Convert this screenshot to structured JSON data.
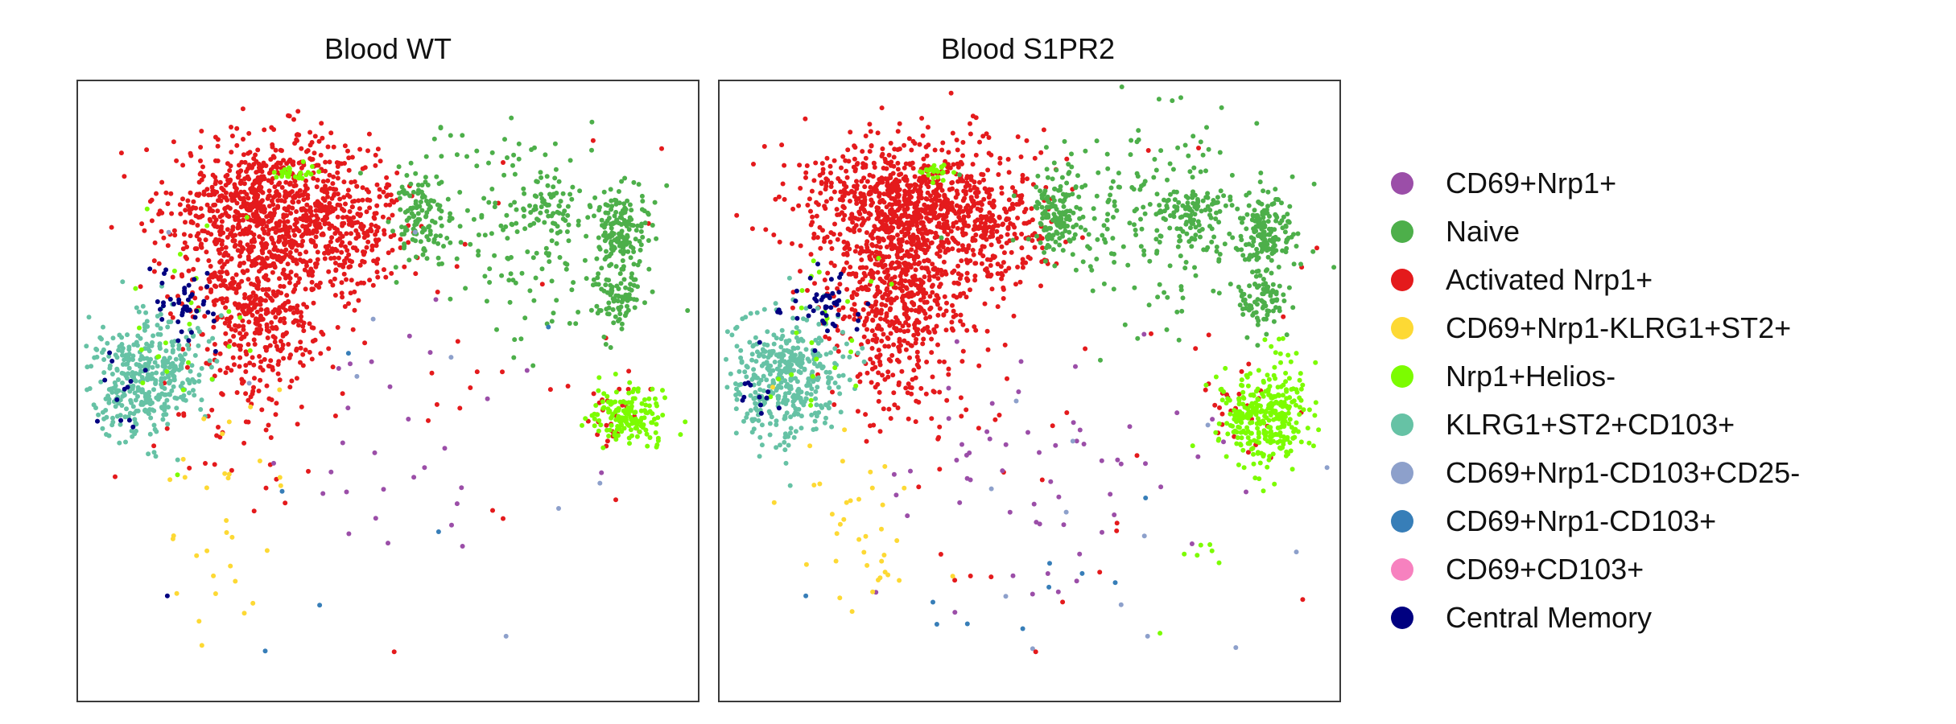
{
  "chart_data": [
    {
      "type": "scatter",
      "title": "Blood WT",
      "xlabel": "",
      "ylabel": "",
      "grid": false,
      "axes_ticks": false,
      "xlim": [
        0,
        100
      ],
      "ylim": [
        0,
        100
      ],
      "clusters": [
        {
          "series": "Activated Nrp1+",
          "cx": 31,
          "cy": 79,
          "sx": 8,
          "sy": 6,
          "n": 900
        },
        {
          "series": "Activated Nrp1+",
          "cx": 29,
          "cy": 63,
          "sx": 5,
          "sy": 6,
          "n": 350
        },
        {
          "series": "Activated Nrp1+",
          "cx": 45,
          "cy": 76,
          "sx": 5,
          "sy": 6,
          "n": 180
        },
        {
          "series": "Activated Nrp1+",
          "cx": 28,
          "cy": 48,
          "sx": 7,
          "sy": 10,
          "n": 70
        },
        {
          "series": "Activated Nrp1+",
          "cx": 65,
          "cy": 60,
          "sx": 20,
          "sy": 15,
          "n": 30
        },
        {
          "series": "Activated Nrp1+",
          "cx": 86,
          "cy": 46,
          "sx": 2,
          "sy": 3,
          "n": 25
        },
        {
          "series": "Naive",
          "cx": 55,
          "cy": 78,
          "sx": 2,
          "sy": 3,
          "n": 110
        },
        {
          "series": "Naive",
          "cx": 76,
          "cy": 79,
          "sx": 3,
          "sy": 2,
          "n": 60
        },
        {
          "series": "Naive",
          "cx": 87,
          "cy": 76,
          "sx": 2,
          "sy": 3,
          "n": 140
        },
        {
          "series": "Naive",
          "cx": 87,
          "cy": 65,
          "sx": 2,
          "sy": 2.5,
          "n": 80
        },
        {
          "series": "Naive",
          "cx": 75,
          "cy": 75,
          "sx": 10,
          "sy": 8,
          "n": 140
        },
        {
          "series": "Naive",
          "cx": 62,
          "cy": 82,
          "sx": 8,
          "sy": 6,
          "n": 40
        },
        {
          "series": "KLRG1+ST2+CD103+",
          "cx": 10,
          "cy": 52,
          "sx": 4,
          "sy": 5,
          "n": 330
        },
        {
          "series": "KLRG1+ST2+CD103+",
          "cx": 17,
          "cy": 53,
          "sx": 3,
          "sy": 4,
          "n": 60
        },
        {
          "series": "Nrp1+Helios-",
          "cx": 89,
          "cy": 46,
          "sx": 3,
          "sy": 2.5,
          "n": 160
        },
        {
          "series": "Nrp1+Helios-",
          "cx": 35,
          "cy": 85,
          "sx": 1.5,
          "sy": 0.8,
          "n": 25
        },
        {
          "series": "Nrp1+Helios-",
          "cx": 18,
          "cy": 60,
          "sx": 5,
          "sy": 8,
          "n": 25
        },
        {
          "series": "Central Memory",
          "cx": 18,
          "cy": 64,
          "sx": 3,
          "sy": 3,
          "n": 45
        },
        {
          "series": "Central Memory",
          "cx": 7,
          "cy": 50,
          "sx": 2,
          "sy": 4,
          "n": 12
        },
        {
          "series": "CD69+Nrp1+",
          "cx": 52,
          "cy": 42,
          "sx": 12,
          "sy": 12,
          "n": 28
        },
        {
          "series": "CD69+Nrp1-KLRG1+ST2+",
          "cx": 23,
          "cy": 30,
          "sx": 6,
          "sy": 10,
          "n": 32
        },
        {
          "series": "CD69+Nrp1-CD103+CD25-",
          "cx": 50,
          "cy": 60,
          "sx": 20,
          "sy": 20,
          "n": 8
        },
        {
          "series": "CD69+Nrp1-CD103+",
          "cx": 45,
          "cy": 35,
          "sx": 15,
          "sy": 15,
          "n": 5
        }
      ],
      "points": [
        {
          "series": "Central Memory",
          "x": 14.5,
          "y": 17
        },
        {
          "series": "Activated Nrp1+",
          "x": 51,
          "y": 8
        },
        {
          "series": "CD69+Nrp1-CD103+CD25-",
          "x": 69,
          "y": 10.5
        },
        {
          "series": "CD69+Nrp1-CD103+",
          "x": 39,
          "y": 15.5
        },
        {
          "series": "CD69+Nrp1+",
          "x": 50,
          "y": 25.5
        },
        {
          "series": "CD69+Nrp1+",
          "x": 62,
          "y": 25
        }
      ]
    },
    {
      "type": "scatter",
      "title": "Blood S1PR2",
      "xlabel": "",
      "ylabel": "",
      "grid": false,
      "axes_ticks": false,
      "xlim": [
        0,
        100
      ],
      "ylim": [
        0,
        100
      ],
      "clusters": [
        {
          "series": "Activated Nrp1+",
          "cx": 30,
          "cy": 79,
          "sx": 8,
          "sy": 6,
          "n": 950
        },
        {
          "series": "Activated Nrp1+",
          "cx": 29,
          "cy": 63,
          "sx": 5,
          "sy": 6,
          "n": 380
        },
        {
          "series": "Activated Nrp1+",
          "cx": 44,
          "cy": 76,
          "sx": 5,
          "sy": 6,
          "n": 200
        },
        {
          "series": "Activated Nrp1+",
          "cx": 30,
          "cy": 52,
          "sx": 6,
          "sy": 8,
          "n": 70
        },
        {
          "series": "Activated Nrp1+",
          "cx": 62,
          "cy": 55,
          "sx": 20,
          "sy": 18,
          "n": 35
        },
        {
          "series": "Activated Nrp1+",
          "cx": 84,
          "cy": 47,
          "sx": 3,
          "sy": 4,
          "n": 25
        },
        {
          "series": "Naive",
          "cx": 54,
          "cy": 78,
          "sx": 2,
          "sy": 3,
          "n": 120
        },
        {
          "series": "Naive",
          "cx": 76,
          "cy": 79,
          "sx": 3,
          "sy": 2,
          "n": 80
        },
        {
          "series": "Naive",
          "cx": 88,
          "cy": 76,
          "sx": 2,
          "sy": 3,
          "n": 150
        },
        {
          "series": "Naive",
          "cx": 87,
          "cy": 65,
          "sx": 2,
          "sy": 2.5,
          "n": 90
        },
        {
          "series": "Naive",
          "cx": 72,
          "cy": 78,
          "sx": 10,
          "sy": 8,
          "n": 180
        },
        {
          "series": "Naive",
          "cx": 62,
          "cy": 82,
          "sx": 8,
          "sy": 6,
          "n": 60
        },
        {
          "series": "KLRG1+ST2+CD103+",
          "cx": 10,
          "cy": 52,
          "sx": 4,
          "sy": 5,
          "n": 340
        },
        {
          "series": "KLRG1+ST2+CD103+",
          "cx": 17,
          "cy": 53,
          "sx": 3,
          "sy": 4,
          "n": 60
        },
        {
          "series": "Nrp1+Helios-",
          "cx": 88,
          "cy": 46,
          "sx": 3.5,
          "sy": 4,
          "n": 320
        },
        {
          "series": "Nrp1+Helios-",
          "cx": 35,
          "cy": 85,
          "sx": 1.5,
          "sy": 0.8,
          "n": 25
        },
        {
          "series": "Nrp1+Helios-",
          "cx": 18,
          "cy": 60,
          "sx": 5,
          "sy": 8,
          "n": 25
        },
        {
          "series": "Nrp1+Helios-",
          "cx": 78,
          "cy": 24,
          "sx": 2,
          "sy": 1,
          "n": 6
        },
        {
          "series": "Central Memory",
          "cx": 17,
          "cy": 64,
          "sx": 3,
          "sy": 3,
          "n": 45
        },
        {
          "series": "Central Memory",
          "cx": 7,
          "cy": 50,
          "sx": 2,
          "sy": 4,
          "n": 12
        },
        {
          "series": "CD69+Nrp1+",
          "cx": 50,
          "cy": 36,
          "sx": 14,
          "sy": 10,
          "n": 60
        },
        {
          "series": "CD69+Nrp1-KLRG1+ST2+",
          "cx": 22,
          "cy": 28,
          "sx": 6,
          "sy": 10,
          "n": 38
        },
        {
          "series": "CD69+Nrp1-CD103+CD25-",
          "cx": 65,
          "cy": 25,
          "sx": 20,
          "sy": 20,
          "n": 14
        },
        {
          "series": "CD69+Nrp1-CD103+",
          "cx": 55,
          "cy": 20,
          "sx": 20,
          "sy": 10,
          "n": 8
        }
      ],
      "points": [
        {
          "series": "CD69+Nrp1-CD103+",
          "x": 14,
          "y": 17
        },
        {
          "series": "CD69+Nrp1-CD103+",
          "x": 40,
          "y": 12.5
        },
        {
          "series": "CD69+Nrp1-CD103+CD25-",
          "x": 50.5,
          "y": 8.5
        },
        {
          "series": "Activated Nrp1+",
          "x": 51,
          "y": 8
        },
        {
          "series": "CD69+Nrp1-CD103+CD25-",
          "x": 69,
          "y": 10.5
        },
        {
          "series": "Nrp1+Helios-",
          "x": 71,
          "y": 11
        }
      ]
    }
  ],
  "legend": {
    "placement": "right",
    "items": [
      {
        "label": "CD69+Nrp1+",
        "color": "#9b4ea8"
      },
      {
        "label": "Naive",
        "color": "#4daf4a"
      },
      {
        "label": "Activated Nrp1+",
        "color": "#e41a1c"
      },
      {
        "label": "CD69+Nrp1-KLRG1+ST2+",
        "color": "#fdd934"
      },
      {
        "label": "Nrp1+Helios-",
        "color": "#7cfc00"
      },
      {
        "label": "KLRG1+ST2+CD103+",
        "color": "#66c2a5"
      },
      {
        "label": "CD69+Nrp1-CD103+CD25-",
        "color": "#8da0cb"
      },
      {
        "label": "CD69+Nrp1-CD103+",
        "color": "#377eb8"
      },
      {
        "label": "CD69+CD103+",
        "color": "#f781bf"
      },
      {
        "label": "Central Memory",
        "color": "#000080"
      }
    ]
  }
}
